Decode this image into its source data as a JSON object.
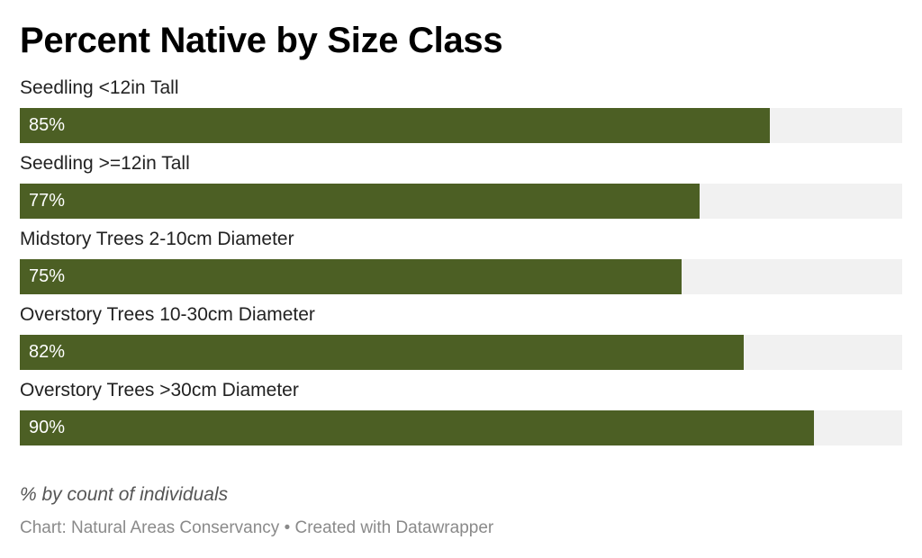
{
  "chart_data": {
    "type": "bar",
    "orientation": "horizontal",
    "title": "Percent Native by Size Class",
    "categories": [
      "Seedling <12in Tall",
      "Seedling >=12in Tall",
      "Midstory Trees 2-10cm Diameter",
      "Overstory Trees 10-30cm Diameter",
      "Overstory Trees >30cm Diameter"
    ],
    "values": [
      85,
      77,
      75,
      82,
      90
    ],
    "value_labels": [
      "85%",
      "77%",
      "75%",
      "82%",
      "90%"
    ],
    "xlim": [
      0,
      100
    ],
    "unit": "%",
    "grid": false,
    "legend": "none",
    "bar_color": "#4c5f24",
    "track_color": "#f1f1f1",
    "notes": "% by count of individuals",
    "source": "Chart: Natural Areas Conservancy • Created with Datawrapper"
  }
}
